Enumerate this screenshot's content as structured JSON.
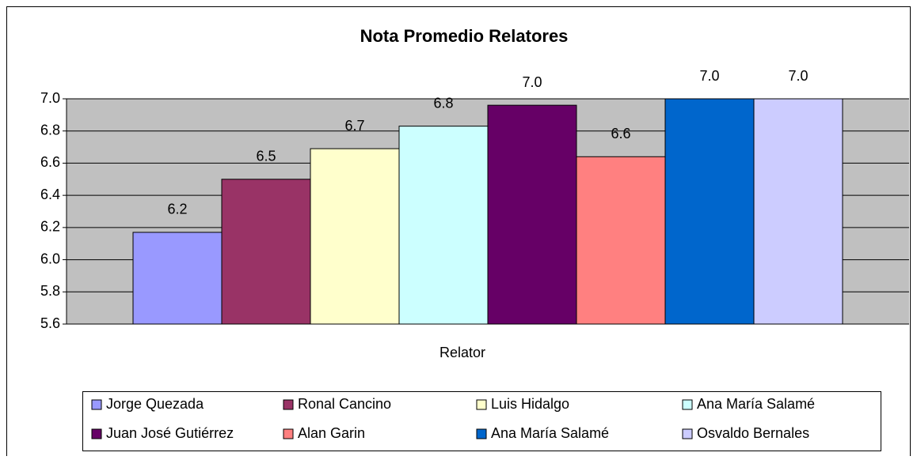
{
  "chart_data": {
    "type": "bar",
    "title": "Nota Promedio Relatores",
    "categories": [
      "Relator"
    ],
    "series": [
      {
        "name": "Jorge Quezada",
        "color": "#9999ff",
        "values": [
          6.17
        ],
        "value_labels": [
          "6.2"
        ]
      },
      {
        "name": "Ronal Cancino",
        "color": "#993366",
        "values": [
          6.5
        ],
        "value_labels": [
          "6.5"
        ]
      },
      {
        "name": "Luis Hidalgo",
        "color": "#ffffcc",
        "values": [
          6.69
        ],
        "value_labels": [
          "6.7"
        ]
      },
      {
        "name": "Ana María Salamé",
        "color": "#ccffff",
        "values": [
          6.83
        ],
        "value_labels": [
          "6.8"
        ]
      },
      {
        "name": "Juan José Gutiérrez",
        "color": "#660066",
        "values": [
          6.96
        ],
        "value_labels": [
          "7.0"
        ]
      },
      {
        "name": "Alan Garin",
        "color": "#ff8080",
        "values": [
          6.64
        ],
        "value_labels": [
          "6.6"
        ]
      },
      {
        "name": "Ana María Salamé",
        "color": "#0066cc",
        "values": [
          7.0
        ],
        "value_labels": [
          "7.0"
        ]
      },
      {
        "name": "Osvaldo Bernales",
        "color": "#ccccff",
        "values": [
          7.0
        ],
        "value_labels": [
          "7.0"
        ]
      }
    ],
    "ylim": [
      5.6,
      7.0
    ],
    "yticks": [
      5.6,
      5.8,
      {
        "value": 6.0,
        "label": "6.0"
      },
      6.2,
      6.4,
      6.6,
      6.8,
      {
        "value": 7.0,
        "label": "7.0"
      }
    ],
    "grid": true,
    "legend": "bottom"
  }
}
